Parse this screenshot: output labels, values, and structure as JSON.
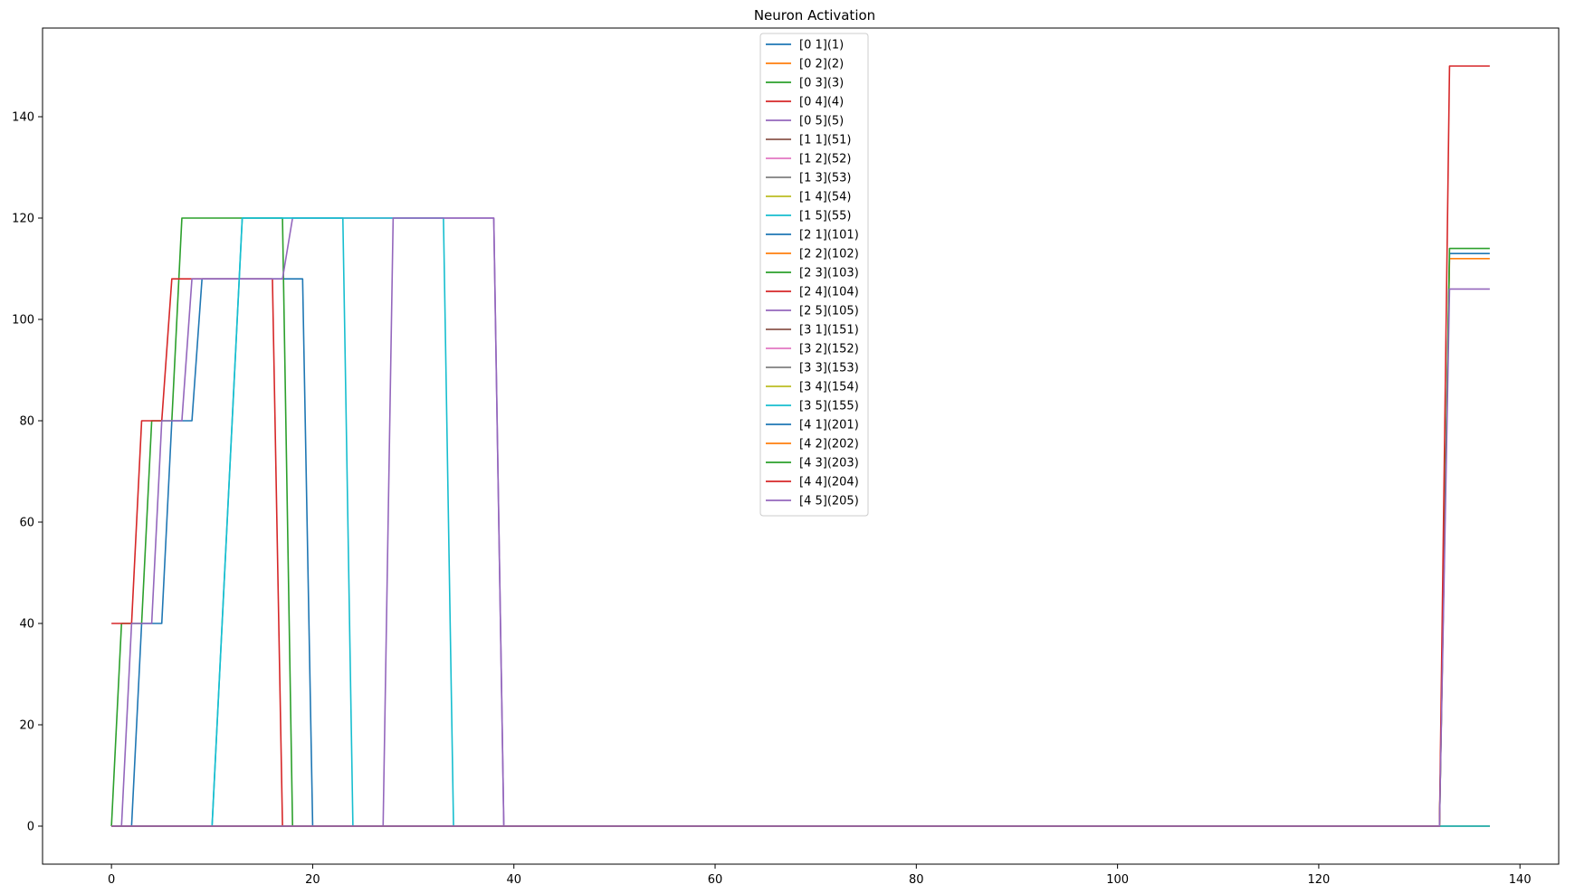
{
  "chart_data": {
    "type": "line",
    "title": "Neuron Activation",
    "xlabel": "",
    "ylabel": "",
    "xlim": [
      -6.85,
      143.85
    ],
    "ylim": [
      -7.5,
      157.5
    ],
    "xticks": [
      0,
      20,
      40,
      60,
      80,
      100,
      120,
      140
    ],
    "yticks": [
      0,
      20,
      40,
      60,
      80,
      100,
      120,
      140
    ],
    "grid": false,
    "legend_position": "top-center",
    "series": [
      {
        "name": "[0 1](1)",
        "color": "#1f77b4",
        "points": [
          [
            0,
            0
          ],
          [
            2,
            0
          ],
          [
            3,
            40
          ],
          [
            5,
            40
          ],
          [
            6,
            80
          ],
          [
            8,
            80
          ],
          [
            9,
            108
          ],
          [
            19,
            108
          ],
          [
            20,
            0
          ],
          [
            137,
            0
          ]
        ]
      },
      {
        "name": "[0 2](2)",
        "color": "#ff7f0e",
        "points": [
          [
            0,
            0
          ],
          [
            137,
            0
          ]
        ]
      },
      {
        "name": "[0 3](3)",
        "color": "#2ca02c",
        "points": [
          [
            0,
            0
          ],
          [
            1,
            40
          ],
          [
            3,
            40
          ],
          [
            4,
            80
          ],
          [
            6,
            80
          ],
          [
            7,
            120
          ],
          [
            17,
            120
          ],
          [
            18,
            0
          ],
          [
            137,
            0
          ]
        ]
      },
      {
        "name": "[0 4](4)",
        "color": "#d62728",
        "points": [
          [
            0,
            40
          ],
          [
            2,
            40
          ],
          [
            3,
            80
          ],
          [
            5,
            80
          ],
          [
            6,
            108
          ],
          [
            16,
            108
          ],
          [
            17,
            0
          ],
          [
            137,
            0
          ]
        ]
      },
      {
        "name": "[0 5](5)",
        "color": "#9467bd",
        "points": [
          [
            0,
            0
          ],
          [
            1,
            0
          ],
          [
            2,
            40
          ],
          [
            4,
            40
          ],
          [
            5,
            80
          ],
          [
            7,
            80
          ],
          [
            8,
            108
          ],
          [
            17,
            108
          ],
          [
            18,
            120
          ],
          [
            38,
            120
          ],
          [
            39,
            0
          ],
          [
            137,
            0
          ]
        ]
      },
      {
        "name": "[1 1](51)",
        "color": "#8c564b",
        "points": [
          [
            0,
            0
          ],
          [
            137,
            0
          ]
        ]
      },
      {
        "name": "[1 2](52)",
        "color": "#e377c2",
        "points": [
          [
            0,
            0
          ],
          [
            137,
            0
          ]
        ]
      },
      {
        "name": "[1 3](53)",
        "color": "#7f7f7f",
        "points": [
          [
            0,
            0
          ],
          [
            137,
            0
          ]
        ]
      },
      {
        "name": "[1 4](54)",
        "color": "#bcbd22",
        "points": [
          [
            0,
            0
          ],
          [
            137,
            0
          ]
        ]
      },
      {
        "name": "[1 5](55)",
        "color": "#17becf",
        "points": [
          [
            0,
            0
          ],
          [
            10,
            0
          ],
          [
            13,
            120
          ],
          [
            33,
            120
          ],
          [
            34,
            0
          ],
          [
            137,
            0
          ]
        ]
      },
      {
        "name": "[2 1](101)",
        "color": "#1f77b4",
        "points": [
          [
            0,
            0
          ],
          [
            137,
            0
          ]
        ]
      },
      {
        "name": "[2 2](102)",
        "color": "#ff7f0e",
        "points": [
          [
            0,
            0
          ],
          [
            137,
            0
          ]
        ]
      },
      {
        "name": "[2 3](103)",
        "color": "#2ca02c",
        "points": [
          [
            0,
            0
          ],
          [
            137,
            0
          ]
        ]
      },
      {
        "name": "[2 4](104)",
        "color": "#d62728",
        "points": [
          [
            0,
            0
          ],
          [
            137,
            0
          ]
        ]
      },
      {
        "name": "[2 5](105)",
        "color": "#9467bd",
        "points": [
          [
            0,
            0
          ],
          [
            27,
            0
          ],
          [
            28,
            120
          ],
          [
            38,
            120
          ],
          [
            39,
            0
          ],
          [
            137,
            0
          ]
        ]
      },
      {
        "name": "[3 1](151)",
        "color": "#8c564b",
        "points": [
          [
            0,
            0
          ],
          [
            137,
            0
          ]
        ]
      },
      {
        "name": "[3 2](152)",
        "color": "#e377c2",
        "points": [
          [
            0,
            0
          ],
          [
            137,
            0
          ]
        ]
      },
      {
        "name": "[3 3](153)",
        "color": "#7f7f7f",
        "points": [
          [
            0,
            0
          ],
          [
            137,
            0
          ]
        ]
      },
      {
        "name": "[3 4](154)",
        "color": "#bcbd22",
        "points": [
          [
            0,
            0
          ],
          [
            137,
            0
          ]
        ]
      },
      {
        "name": "[3 5](155)",
        "color": "#17becf",
        "points": [
          [
            0,
            0
          ],
          [
            10,
            0
          ],
          [
            13,
            120
          ],
          [
            23,
            120
          ],
          [
            24,
            0
          ],
          [
            137,
            0
          ]
        ]
      },
      {
        "name": "[4 1](201)",
        "color": "#1f77b4",
        "points": [
          [
            0,
            0
          ],
          [
            132,
            0
          ],
          [
            133,
            113
          ],
          [
            137,
            113
          ]
        ]
      },
      {
        "name": "[4 2](202)",
        "color": "#ff7f0e",
        "points": [
          [
            0,
            0
          ],
          [
            132,
            0
          ],
          [
            133,
            112
          ],
          [
            137,
            112
          ]
        ]
      },
      {
        "name": "[4 3](203)",
        "color": "#2ca02c",
        "points": [
          [
            0,
            0
          ],
          [
            132,
            0
          ],
          [
            133,
            114
          ],
          [
            137,
            114
          ]
        ]
      },
      {
        "name": "[4 4](204)",
        "color": "#d62728",
        "points": [
          [
            0,
            0
          ],
          [
            132,
            0
          ],
          [
            133,
            150
          ],
          [
            137,
            150
          ]
        ]
      },
      {
        "name": "[4 5](205)",
        "color": "#9467bd",
        "points": [
          [
            0,
            0
          ],
          [
            132,
            0
          ],
          [
            133,
            106
          ],
          [
            137,
            106
          ]
        ]
      }
    ]
  }
}
